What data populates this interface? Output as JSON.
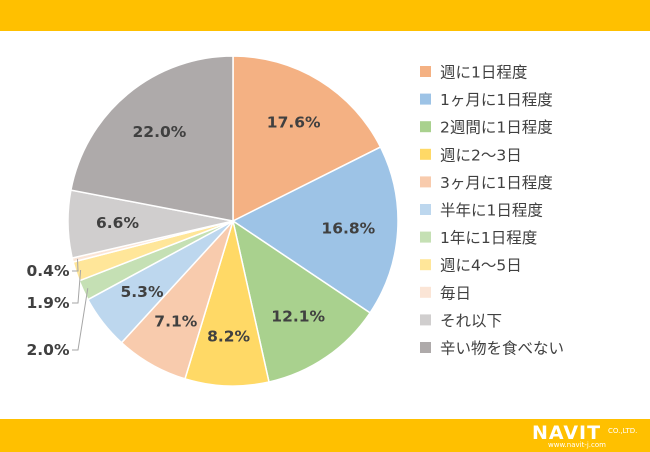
{
  "chart_data": {
    "type": "pie",
    "title": "",
    "legend_position": "right",
    "slices": [
      {
        "name": "週に1日程度",
        "value": 17.6,
        "label": "17.6%",
        "color": "#F4B183"
      },
      {
        "name": "1ヶ月に1日程度",
        "value": 16.8,
        "label": "16.8%",
        "color": "#9DC3E6"
      },
      {
        "name": "2週間に1日程度",
        "value": 12.1,
        "label": "12.1%",
        "color": "#A9D18E"
      },
      {
        "name": "週に2〜3日",
        "value": 8.2,
        "label": "8.2%",
        "color": "#FFD966"
      },
      {
        "name": "3ヶ月に1日程度",
        "value": 7.1,
        "label": "7.1%",
        "color": "#F8CBAD"
      },
      {
        "name": "半年に1日程度",
        "value": 5.3,
        "label": "5.3%",
        "color": "#BDD7EE"
      },
      {
        "name": "1年に1日程度",
        "value": 2.0,
        "label": "2.0%",
        "color": "#C5E0B4"
      },
      {
        "name": "週に4〜5日",
        "value": 1.9,
        "label": "1.9%",
        "color": "#FFE699"
      },
      {
        "name": "毎日",
        "value": 0.4,
        "label": "0.4%",
        "color": "#FBE5D6"
      },
      {
        "name": "それ以下",
        "value": 6.6,
        "label": "6.6%",
        "color": "#D0CECE"
      },
      {
        "name": "辛い物を食べない",
        "value": 22.0,
        "label": "22.0%",
        "color": "#AEAAAA"
      }
    ]
  },
  "branding": {
    "name": "NAVIT",
    "company_suffix": "CO.,LTD.",
    "url": "www.navit-j.com"
  },
  "colors": {
    "band": "#FFC000",
    "text": "#404040"
  }
}
